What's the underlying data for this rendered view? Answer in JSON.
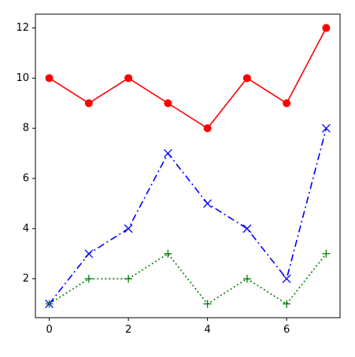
{
  "chart_data": {
    "type": "line",
    "x": [
      0,
      1,
      2,
      3,
      4,
      5,
      6,
      7
    ],
    "series": [
      {
        "color": "#ff0000",
        "linestyle": "solid",
        "marker": "circle",
        "values": [
          10,
          9,
          10,
          9,
          8,
          10,
          9,
          12
        ]
      },
      {
        "color": "#0000ff",
        "linestyle": "dashdot",
        "marker": "x",
        "values": [
          1,
          3,
          4,
          7,
          5,
          4,
          2,
          8
        ]
      },
      {
        "color": "#008000",
        "linestyle": "dotted",
        "marker": "plus",
        "values": [
          1,
          2,
          2,
          3,
          1,
          2,
          1,
          3
        ]
      }
    ],
    "xlim": [
      -0.35,
      7.35
    ],
    "ylim": [
      0.45,
      12.55
    ],
    "xticks": [
      0,
      2,
      4,
      6
    ],
    "yticks": [
      2,
      4,
      6,
      8,
      10,
      12
    ],
    "grid": false
  }
}
